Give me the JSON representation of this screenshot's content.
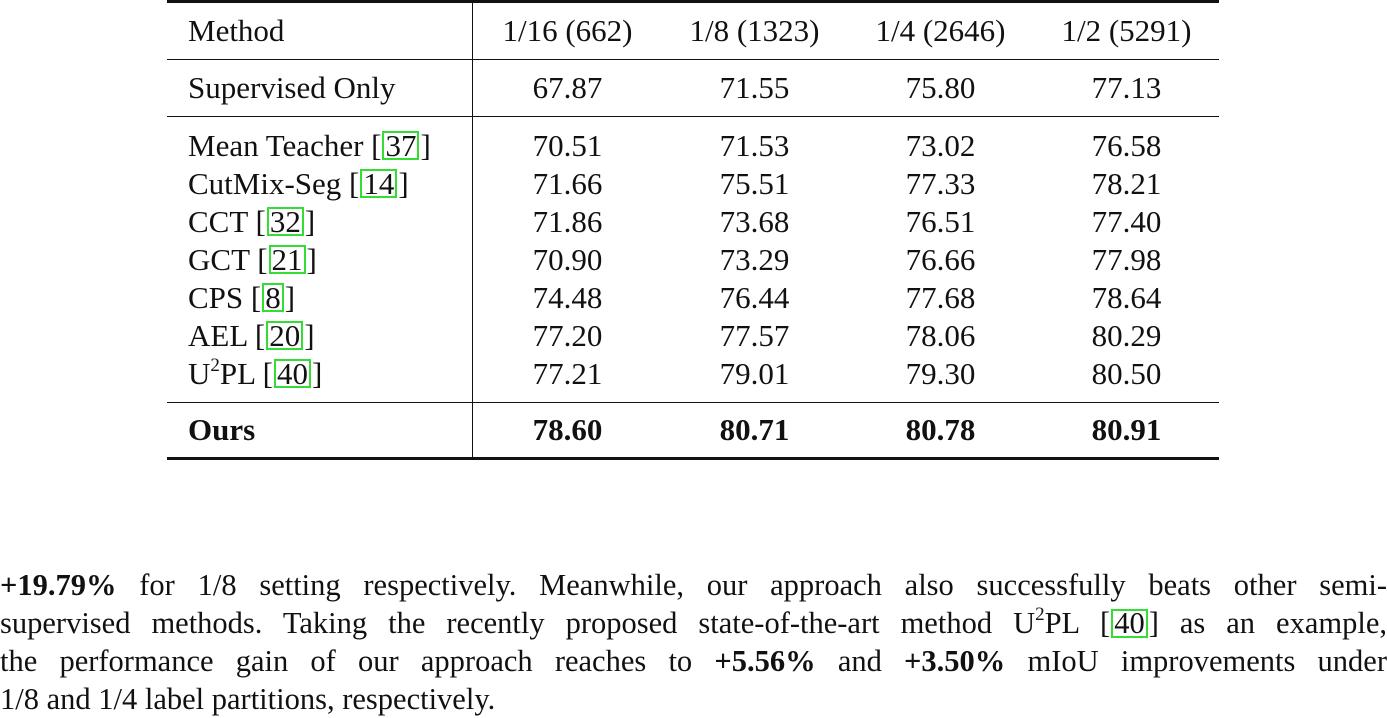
{
  "table": {
    "header": {
      "method": "Method",
      "cols": [
        "1/16 (662)",
        "1/8 (1323)",
        "1/4 (2646)",
        "1/2 (5291)"
      ]
    },
    "supervised": {
      "method": "Supervised Only",
      "values": [
        "67.87",
        "71.55",
        "75.80",
        "77.13"
      ]
    },
    "rows": [
      {
        "name": "Mean Teacher [",
        "cite": "37",
        "close": "]",
        "values": [
          "70.51",
          "71.53",
          "73.02",
          "76.58"
        ]
      },
      {
        "name": "CutMix-Seg [",
        "cite": "14",
        "close": "]",
        "values": [
          "71.66",
          "75.51",
          "77.33",
          "78.21"
        ]
      },
      {
        "name": "CCT [",
        "cite": "32",
        "close": "]",
        "values": [
          "71.86",
          "73.68",
          "76.51",
          "77.40"
        ]
      },
      {
        "name": "GCT [",
        "cite": "21",
        "close": "]",
        "values": [
          "70.90",
          "73.29",
          "76.66",
          "77.98"
        ]
      },
      {
        "name": "CPS [",
        "cite": "8",
        "close": "]",
        "values": [
          "74.48",
          "76.44",
          "77.68",
          "78.64"
        ]
      },
      {
        "name": "AEL [",
        "cite": "20",
        "close": "]",
        "values": [
          "77.20",
          "77.57",
          "78.06",
          "80.29"
        ]
      },
      {
        "name_pre": "U",
        "name_sup": "2",
        "name_post": "PL [",
        "cite": "40",
        "close": "]",
        "values": [
          "77.21",
          "79.01",
          "79.30",
          "80.50"
        ]
      }
    ],
    "ours": {
      "method": "Ours",
      "values": [
        "78.60",
        "80.71",
        "80.78",
        "80.91"
      ]
    }
  },
  "paragraph": {
    "l1_bold": "+19.79%",
    "l1_rest": " for 1/8 setting respectively. Meanwhile, our approach also successfully beats other semi-",
    "l2_a": "supervised methods. Taking the recently proposed state-of-the-art method U",
    "l2_sup": "2",
    "l2_b": "PL [",
    "l2_cite": "40",
    "l2_c": "] as an example,",
    "l3_a": "the performance gain of our approach reaches to ",
    "l3_bold1": "+5.56%",
    "l3_b": " and ",
    "l3_bold2": "+3.50%",
    "l3_c": " mIoU improvements under",
    "l4": "1/8 and 1/4 label partitions, respectively."
  }
}
